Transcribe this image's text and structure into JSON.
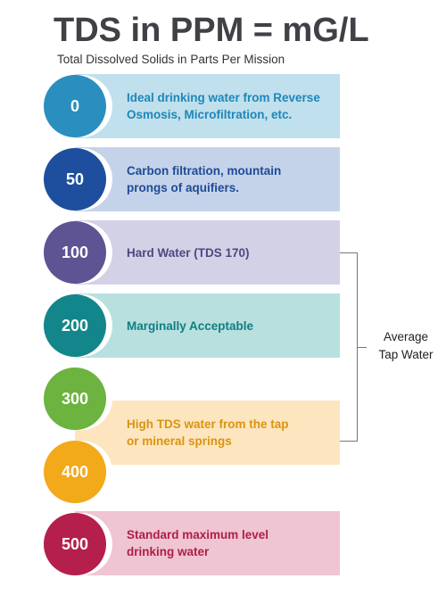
{
  "header": {
    "title": "TDS in PPM = mG/L",
    "subtitle": "Total Dissolved Solids in Parts Per Mission"
  },
  "levels": [
    {
      "value": "0",
      "circle_color": "#2a8fbf",
      "band_color": "#bfe0ec",
      "text_color": "#1f86b9",
      "description": "Ideal drinking water from Reverse\nOsmosis, Microfiltration, etc."
    },
    {
      "value": "50",
      "circle_color": "#1d4f9e",
      "band_color": "#c5d3ea",
      "text_color": "#1e4b94",
      "description": "Carbon filtration, mountain\nprongs of aquifiers."
    },
    {
      "value": "100",
      "circle_color": "#5e5494",
      "band_color": "#d3d1e6",
      "text_color": "#4e4782",
      "description": "Hard Water (TDS 170)"
    },
    {
      "value": "200",
      "circle_color": "#12868a",
      "band_color": "#b8e0df",
      "text_color": "#0f7e82",
      "description": "Marginally Acceptable"
    },
    {
      "value": "300",
      "circle_color": "#6cb33f",
      "band_color": null,
      "text_color": null,
      "description": null
    },
    {
      "value": "400",
      "circle_color": "#f2a91a",
      "band_color": "#fde6bf",
      "text_color": "#d99410",
      "description": "High TDS water from the tap\nor mineral springs"
    },
    {
      "value": "500",
      "circle_color": "#b51f4b",
      "band_color": "#efc4d3",
      "text_color": "#ad1f47",
      "description": "Standard maximum level\ndrinking water"
    }
  ],
  "bracket": {
    "label": "Average\nTap Water"
  }
}
